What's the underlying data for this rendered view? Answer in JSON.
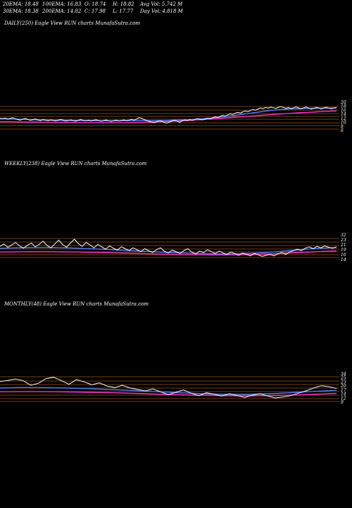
{
  "header": {
    "ema20": "20EMA: 18.48",
    "ema100": "100EMA: 16.83",
    "open": "O: 18.74",
    "high": "H: 18.82",
    "avg_vol": "Avg Vol: 5.742  M",
    "ema30": "30EMA: 18.38",
    "ema200": "200EMA: 14.82",
    "close": "C: 17.98",
    "low": "L: 17.77",
    "day_vol": "Day Vol: 4.818  M"
  },
  "colors": {
    "background": "#000000",
    "price": "#ffffff",
    "ema_short": "#4f7cff",
    "ema_long": "#ff2fd0",
    "grid": "#b5651d"
  },
  "chart_data": [
    {
      "type": "line",
      "title": "DAILY(250) Eagle   View  RUN  charts MunafaSutra.com",
      "tick_labels": [
        "20",
        "18",
        "16",
        "14",
        "12",
        "10",
        "8",
        "6"
      ],
      "ylim": [
        5,
        21
      ],
      "price": [
        12.0,
        11.6,
        12.1,
        11.4,
        11.8,
        12.3,
        11.7,
        11.2,
        10.9,
        11.5,
        11.9,
        11.3,
        10.8,
        11.1,
        11.6,
        11.0,
        10.7,
        11.2,
        10.9,
        10.6,
        11.0,
        10.8,
        10.5,
        10.9,
        11.3,
        10.8,
        10.4,
        10.7,
        11.0,
        10.6,
        10.3,
        10.8,
        11.2,
        10.7,
        10.5,
        10.9,
        10.4,
        10.8,
        11.1,
        10.6,
        10.3,
        10.7,
        11.0,
        10.5,
        10.2,
        10.6,
        10.9,
        10.4,
        10.7,
        11.0,
        10.6,
        10.9,
        11.3,
        10.9,
        11.5,
        12.4,
        11.9,
        11.2,
        10.6,
        10.2,
        9.8,
        9.4,
        10.1,
        10.6,
        10.2,
        9.6,
        9.2,
        9.8,
        10.4,
        10.9,
        10.3,
        9.7,
        10.5,
        11.0,
        10.6,
        11.2,
        10.8,
        11.3,
        11.8,
        11.4,
        11.0,
        11.5,
        12.0,
        11.6,
        12.2,
        12.8,
        12.4,
        13.0,
        13.6,
        13.2,
        13.9,
        14.5,
        14.1,
        14.8,
        15.3,
        14.9,
        15.6,
        16.1,
        15.7,
        16.4,
        16.9,
        16.5,
        17.2,
        17.8,
        17.4,
        18.1,
        17.7,
        18.3,
        17.9,
        17.5,
        18.2,
        18.6,
        18.1,
        17.6,
        18.0,
        17.4,
        17.9,
        18.4,
        17.8,
        17.3,
        17.9,
        18.3,
        17.7,
        17.2,
        17.6,
        18.1,
        17.8,
        17.3,
        17.9,
        18.2,
        17.7,
        17.4,
        17.8,
        18.0
      ],
      "ema_short": [
        11.8,
        11.7,
        11.6,
        11.5,
        11.4,
        11.3,
        11.2,
        11.1,
        11.0,
        10.95,
        10.9,
        10.85,
        10.8,
        10.8,
        10.75,
        10.7,
        10.7,
        10.65,
        10.6,
        10.6,
        10.55,
        10.5,
        10.5,
        10.5,
        10.5,
        10.55,
        10.6,
        10.65,
        10.7,
        10.7,
        10.65,
        10.6,
        10.6,
        10.65,
        10.7,
        10.8,
        10.9,
        11.0,
        11.1,
        11.2,
        11.4,
        11.6,
        11.8,
        12.0,
        12.3,
        12.6,
        12.9,
        13.2,
        13.5,
        13.9,
        14.3,
        14.7,
        15.1,
        15.5,
        15.9,
        16.2,
        16.5,
        16.8,
        17.0,
        17.2,
        17.3,
        17.4,
        17.5,
        17.55,
        17.6,
        17.65,
        17.7,
        17.7,
        17.75,
        17.8
      ],
      "ema_long": [
        10.0,
        10.0,
        9.95,
        9.9,
        9.9,
        9.85,
        9.8,
        9.8,
        9.75,
        9.7,
        9.7,
        9.65,
        9.6,
        9.6,
        9.6,
        9.55,
        9.5,
        9.5,
        9.5,
        9.45,
        9.4,
        9.4,
        9.4,
        9.4,
        9.4,
        9.45,
        9.5,
        9.55,
        9.6,
        9.65,
        9.7,
        9.8,
        9.9,
        10.0,
        10.1,
        10.2,
        10.35,
        10.5,
        10.65,
        10.8,
        10.95,
        11.1,
        11.3,
        11.5,
        11.7,
        11.9,
        12.1,
        12.3,
        12.5,
        12.7,
        12.9,
        13.1,
        13.3,
        13.5,
        13.7,
        13.9,
        14.1,
        14.3,
        14.5,
        14.7,
        14.85,
        15.0,
        15.15,
        15.3,
        15.45,
        15.6,
        15.75,
        15.9,
        16.0,
        16.1
      ]
    },
    {
      "type": "line",
      "title": "WEEKLY(238) Eagle   View  RUN  charts MunafaSutra.com",
      "tick_labels": [
        "32",
        "23",
        "21",
        "19",
        "16",
        "14"
      ],
      "ylim": [
        8,
        34
      ],
      "price": [
        22.0,
        24.5,
        21.0,
        23.5,
        26.0,
        22.5,
        20.0,
        23.0,
        25.5,
        21.5,
        24.0,
        27.5,
        23.0,
        20.5,
        24.5,
        28.5,
        24.0,
        21.0,
        25.5,
        29.5,
        25.0,
        22.0,
        26.0,
        23.5,
        20.5,
        24.0,
        21.5,
        19.0,
        22.5,
        20.0,
        18.0,
        21.5,
        19.5,
        17.5,
        20.5,
        18.5,
        16.5,
        19.5,
        17.5,
        15.5,
        18.5,
        20.5,
        17.0,
        15.0,
        18.0,
        16.5,
        14.5,
        17.5,
        19.5,
        16.0,
        14.0,
        17.0,
        15.5,
        18.5,
        16.5,
        14.5,
        17.0,
        15.0,
        13.5,
        16.0,
        14.5,
        12.5,
        15.0,
        13.5,
        12.0,
        14.5,
        13.0,
        11.5,
        12.5,
        13.5,
        12.0,
        14.0,
        15.5,
        13.5,
        16.0,
        17.5,
        19.0,
        17.5,
        20.0,
        21.5,
        19.5,
        22.0,
        20.5,
        22.5,
        21.0,
        20.0,
        21.5
      ],
      "ema_short": [
        20.0,
        20.2,
        20.4,
        20.6,
        20.7,
        20.8,
        20.8,
        20.7,
        20.5,
        20.3,
        20.0,
        19.7,
        19.4,
        19.0,
        18.6,
        18.2,
        17.8,
        17.4,
        17.0,
        16.6,
        16.2,
        15.8,
        15.4,
        15.1,
        14.8,
        14.5,
        14.3,
        14.1,
        14.0,
        14.0,
        14.1,
        14.3,
        14.6,
        15.0,
        15.5,
        16.1,
        16.8,
        17.5,
        18.2,
        18.9,
        19.5,
        20.0,
        20.4,
        20.7
      ],
      "ema_long": [
        16.0,
        16.1,
        16.2,
        16.3,
        16.4,
        16.4,
        16.4,
        16.3,
        16.2,
        16.1,
        16.0,
        15.8,
        15.6,
        15.4,
        15.2,
        15.0,
        14.8,
        14.6,
        14.4,
        14.2,
        14.0,
        13.8,
        13.6,
        13.4,
        13.3,
        13.2,
        13.1,
        13.0,
        13.0,
        13.0,
        13.1,
        13.2,
        13.4,
        13.6,
        13.9,
        14.2,
        14.6,
        15.0,
        15.4,
        15.8,
        16.2,
        16.6,
        17.0,
        17.3
      ]
    },
    {
      "type": "line",
      "title": "MONTHLY(48) Eagle   View  RUN  charts MunafaSutra.com",
      "tick_labels": [
        "34",
        "25",
        "23",
        "20",
        "17",
        "14",
        "12",
        "9"
      ],
      "ylim": [
        7,
        37
      ],
      "price": [
        29.0,
        30.0,
        31.5,
        30.0,
        25.0,
        27.0,
        32.0,
        33.5,
        30.0,
        26.0,
        31.0,
        28.5,
        25.5,
        27.5,
        24.0,
        22.5,
        25.0,
        22.0,
        20.5,
        19.0,
        21.0,
        18.0,
        15.0,
        17.5,
        20.0,
        16.5,
        14.0,
        17.0,
        15.5,
        13.5,
        16.0,
        14.0,
        12.0,
        14.5,
        16.0,
        13.5,
        11.5,
        12.5,
        14.0,
        16.5,
        19.0,
        22.0,
        24.5,
        23.5,
        21.5
      ],
      "ema_short": [
        22.0,
        22.3,
        22.5,
        22.6,
        22.5,
        22.4,
        22.2,
        22.0,
        21.7,
        21.4,
        21.0,
        20.6,
        20.2,
        19.8,
        19.3,
        18.8,
        18.3,
        17.8,
        17.3,
        16.8,
        16.4,
        16.0,
        15.7,
        15.5,
        15.4,
        15.4,
        15.5,
        15.7,
        16.0,
        16.4,
        16.9,
        17.5,
        18.1,
        18.7,
        19.2,
        19.6
      ],
      "ema_long": [
        18.0,
        18.1,
        18.2,
        18.2,
        18.2,
        18.1,
        18.0,
        17.9,
        17.7,
        17.5,
        17.3,
        17.1,
        16.9,
        16.6,
        16.3,
        16.0,
        15.7,
        15.4,
        15.1,
        14.8,
        14.5,
        14.3,
        14.1,
        13.9,
        13.8,
        13.7,
        13.7,
        13.8,
        13.9,
        14.1,
        14.4,
        14.7,
        15.1,
        15.5,
        15.9,
        16.3
      ]
    }
  ]
}
